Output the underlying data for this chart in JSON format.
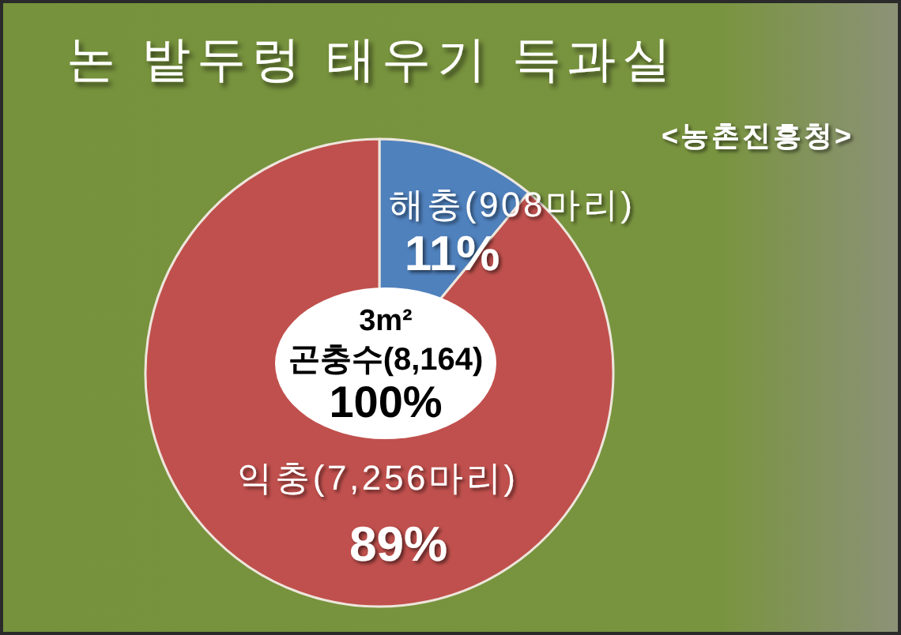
{
  "chart_data": {
    "type": "pie",
    "title": "논 밭두렁 태우기 득과실",
    "categories": [
      "해충(908마리)",
      "익충(7,256마리)"
    ],
    "values": [
      11,
      89
    ],
    "colors": [
      "#4f81bd",
      "#c0504d"
    ],
    "value_labels": [
      "11%",
      "89%"
    ],
    "annotations": [
      "<농촌진흥청>",
      "3m²\n곤충수(8,164)\n100%"
    ]
  }
}
